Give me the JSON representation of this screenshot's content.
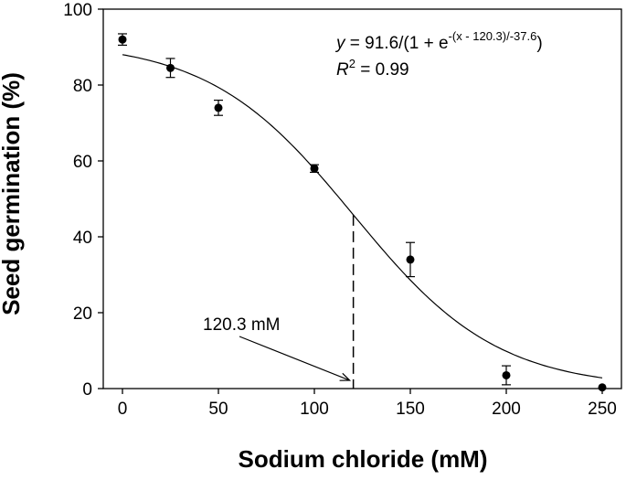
{
  "chart_data": {
    "type": "scatter",
    "xlabel": "Sodium chloride (mM)",
    "ylabel": "Seed germination (%)",
    "xlim": [
      -10,
      260
    ],
    "ylim": [
      0,
      100
    ],
    "xticks": [
      0,
      50,
      100,
      150,
      200,
      250
    ],
    "yticks": [
      0,
      20,
      40,
      60,
      80,
      100
    ],
    "grid": false,
    "points": [
      {
        "x": 0,
        "y": 92,
        "err": 1.5
      },
      {
        "x": 25,
        "y": 84.5,
        "err": 2.5
      },
      {
        "x": 50,
        "y": 74,
        "err": 2
      },
      {
        "x": 100,
        "y": 58,
        "err": 1
      },
      {
        "x": 150,
        "y": 34,
        "err": 4.5
      },
      {
        "x": 200,
        "y": 3.5,
        "err": 2.5
      },
      {
        "x": 250,
        "y": 0.3,
        "err": 0
      }
    ],
    "fit": {
      "a": 91.6,
      "x0": 120.3,
      "b": -37.6
    },
    "equation": {
      "y": "y",
      "eq_main": " = 91.6/(1 + e",
      "exponent": "-(x - 120.3)/-37.6",
      "close": ")",
      "r": "R",
      "r_sup": "2",
      "r_val": " = 0.99"
    },
    "annotation": {
      "text": "120.3 mM",
      "x": 120.3
    }
  }
}
